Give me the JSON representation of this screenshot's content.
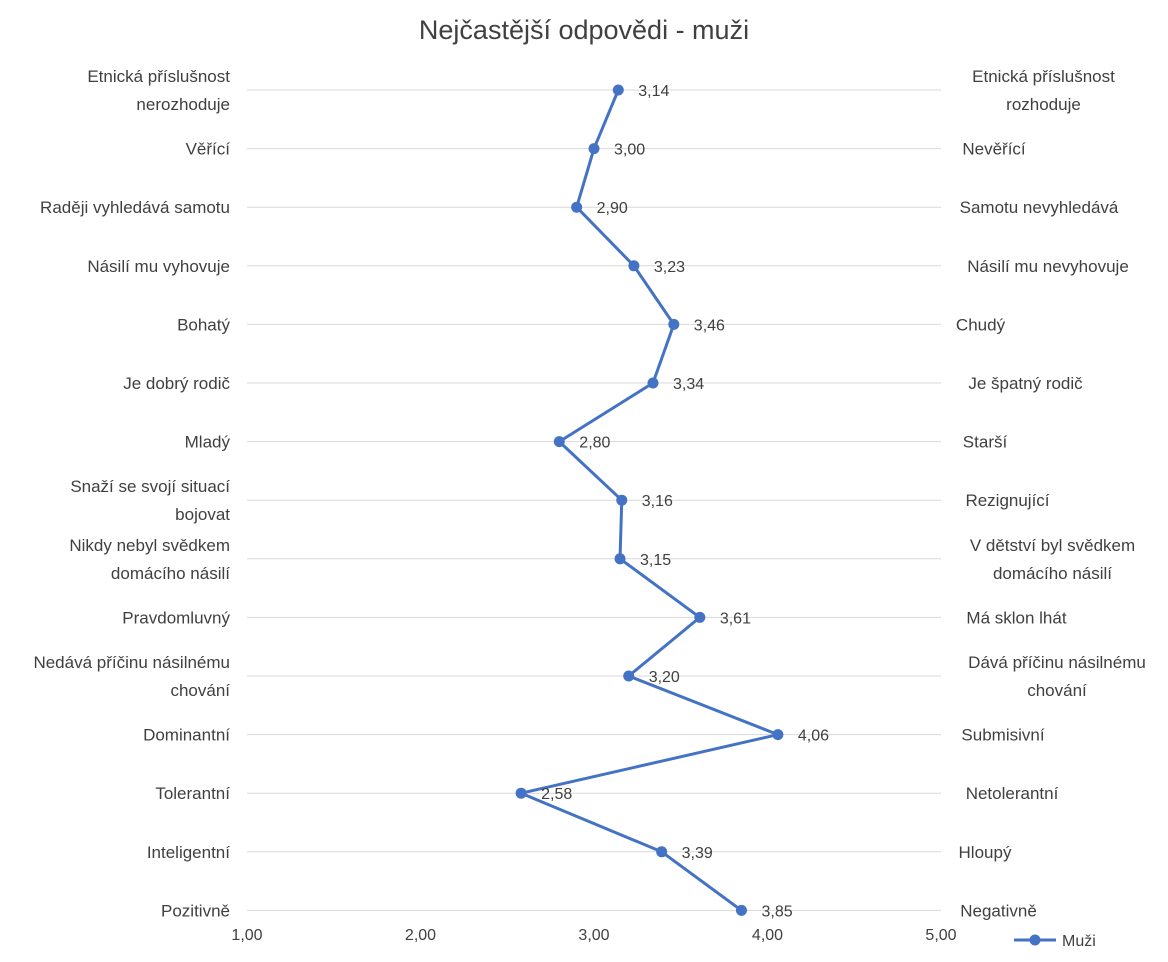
{
  "chart_data": {
    "type": "line",
    "title": "Nejčastější odpovědi - muži",
    "categories_left": [
      "Etnická příslušnost nerozhoduje",
      "Věřící",
      "Raději vyhledává samotu",
      "Násilí mu vyhovuje",
      "Bohatý",
      "Je dobrý rodič",
      "Mladý",
      "Snaží se svojí situací bojovat",
      "Nikdy nebyl svědkem domácího násilí",
      "Pravdomluvný",
      "Nedává příčinu násilnému chování",
      "Dominantní",
      "Tolerantní",
      "Inteligentní",
      "Pozitivně"
    ],
    "categories_right": [
      "Etnická příslušnost rozhoduje",
      "Nevěřící",
      "Samotu nevyhledává",
      "Násilí mu nevyhovuje",
      "Chudý",
      "Je špatný rodič",
      "Starší",
      "Rezignující",
      "V dětství byl svědkem domácího násilí",
      "Má sklon lhát",
      "Dává příčinu násilnému chování",
      "Submisivní",
      "Netolerantní",
      "Hloupý",
      "Negativně"
    ],
    "series": [
      {
        "name": "Muži",
        "values": [
          3.14,
          3.0,
          2.9,
          3.23,
          3.46,
          3.34,
          2.8,
          3.16,
          3.15,
          3.61,
          3.2,
          4.06,
          2.58,
          3.39,
          3.85
        ],
        "labels": [
          "3,14",
          "3,00",
          "2,90",
          "3,23",
          "3,46",
          "3,34",
          "2,80",
          "3,16",
          "3,15",
          "3,61",
          "3,20",
          "4,06",
          "2,58",
          "3,39",
          "3,85"
        ],
        "color": "#4472c4"
      }
    ],
    "xlim": [
      1,
      5
    ],
    "xticks": [
      1,
      2,
      3,
      4,
      5
    ],
    "xtick_labels": [
      "1,00",
      "2,00",
      "3,00",
      "4,00",
      "5,00"
    ],
    "grid": "horizontal",
    "legend_position": "bottom-right",
    "colors": {
      "series": "#4472c4",
      "grid": "#d9d9d9",
      "text": "#404040"
    }
  }
}
